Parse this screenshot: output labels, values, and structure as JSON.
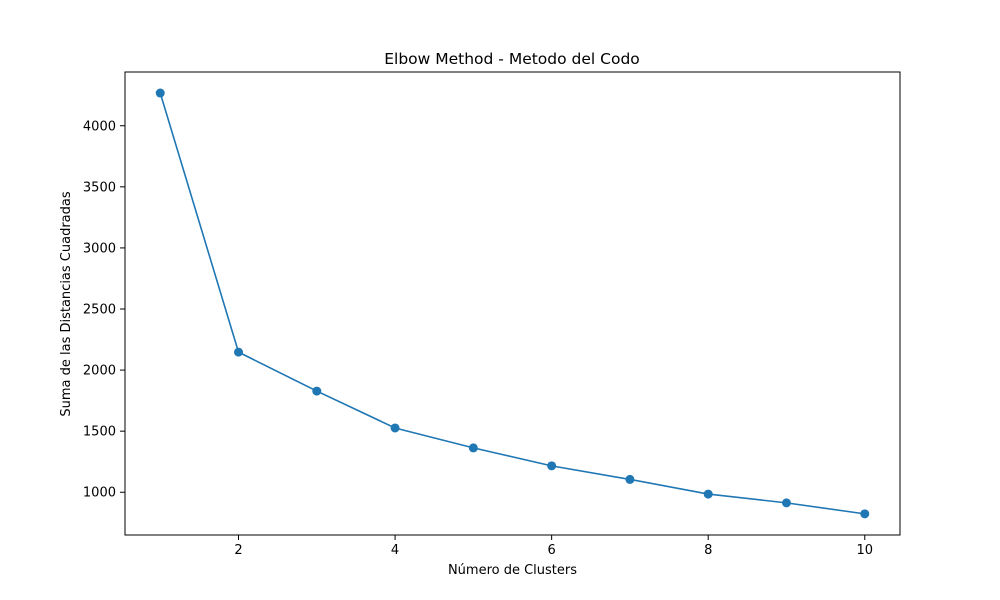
{
  "chart_data": {
    "type": "line",
    "title": "Elbow Method - Metodo del Codo",
    "xlabel": "Número de Clusters",
    "ylabel": "Suma de las Distancias Cuadradas",
    "x": [
      1,
      2,
      3,
      4,
      5,
      6,
      7,
      8,
      9,
      10
    ],
    "series": [
      {
        "values": [
          4268,
          2147,
          1828,
          1526,
          1363,
          1216,
          1105,
          985,
          913,
          823
        ],
        "color": "#1f77b4",
        "marker": "circle"
      }
    ],
    "xticks": [
      2,
      4,
      6,
      8,
      10
    ],
    "yticks": [
      1000,
      1500,
      2000,
      2500,
      3000,
      3500,
      4000
    ],
    "xlim": [
      0.55,
      10.45
    ],
    "ylim": [
      650,
      4440
    ],
    "grid": false,
    "legend": false
  }
}
